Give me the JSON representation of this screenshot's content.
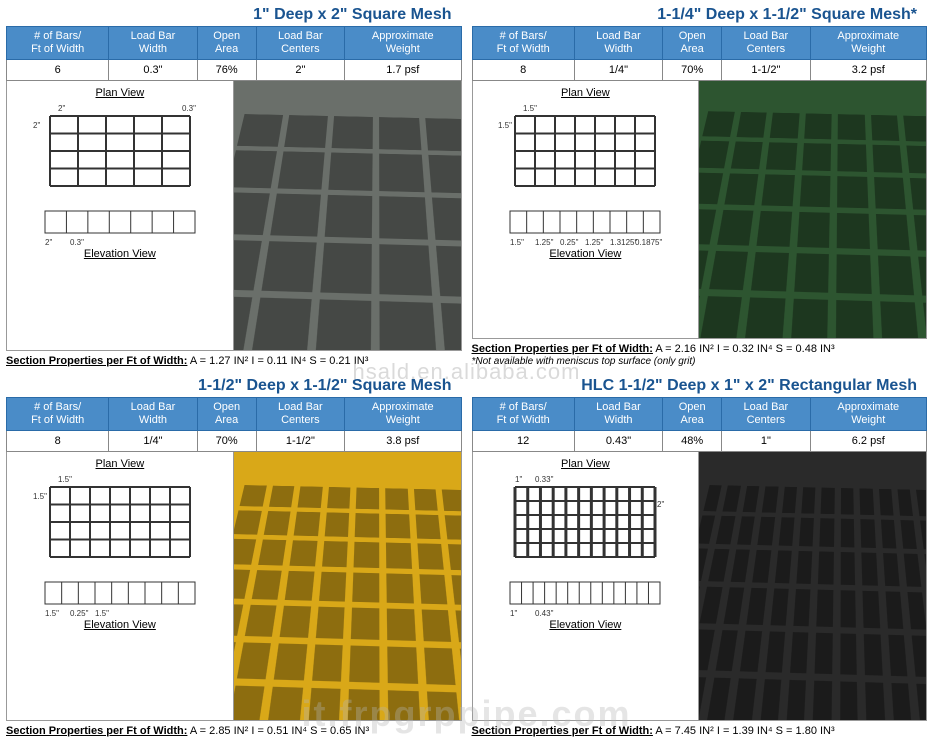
{
  "watermark1": "hsald.en.alibaba.com",
  "watermark2": "it.frpgrppipe.com",
  "colors": {
    "header_bg": "#4a8cc8",
    "header_border": "#2a6ba8",
    "title_color": "#1a5490"
  },
  "table_headers": [
    "# of Bars/\nFt of Width",
    "Load Bar\nWidth",
    "Open\nArea",
    "Load Bar\nCenters",
    "Approximate\nWeight"
  ],
  "panels": [
    {
      "title": "1\" Deep x 2\" Square Mesh",
      "specs": [
        "6",
        "0.3\"",
        "76%",
        "2\"",
        "1.7 psf"
      ],
      "plan_label": "Plan View",
      "elev_label": "Elevation View",
      "section_label": "Section Properties per Ft of Width:",
      "section_vals": "A = 1.27 IN²   I = 0.11 IN⁴   S = 0.21 IN³",
      "photo_color": "#6a6f6a",
      "photo_cols": 5,
      "photo_rows": 5,
      "plan_dims": {
        "h2": "2\"",
        "w2": "2\"",
        "t": "0.3\""
      },
      "elev_dims": {
        "w": "2\"",
        "t": "0.3\""
      },
      "footnote": ""
    },
    {
      "title": "1-1/4\" Deep x 1-1/2\" Square Mesh*",
      "specs": [
        "8",
        "1/4\"",
        "70%",
        "1-1/2\"",
        "3.2 psf"
      ],
      "plan_label": "Plan View",
      "elev_label": "Elevation View",
      "section_label": "Section Properties per Ft of Width:",
      "section_vals": "A = 2.16 IN²   I = 0.32 IN⁴   S = 0.48 IN³",
      "photo_color": "#2d5530",
      "photo_cols": 7,
      "photo_rows": 6,
      "plan_dims": {
        "h2": "1.5\"",
        "w2": "1.5\""
      },
      "elev_dims": {
        "a": "1.5\"",
        "b": "1.25\"",
        "c": "0.25\"",
        "d": "1.25\"",
        "e": "1.3125\"",
        "f": "0.1875\""
      },
      "footnote": "*Not available with meniscus top surface (only grit)"
    },
    {
      "title": "1-1/2\" Deep x 1-1/2\" Square Mesh",
      "specs": [
        "8",
        "1/4\"",
        "70%",
        "1-1/2\"",
        "3.8 psf"
      ],
      "plan_label": "Plan View",
      "elev_label": "Elevation View",
      "section_label": "Section Properties per Ft of Width:",
      "section_vals": "A = 2.85 IN²   I = 0.51 IN⁴   S = 0.65 IN³",
      "photo_color": "#d9a818",
      "photo_cols": 8,
      "photo_rows": 7,
      "plan_dims": {
        "h2": "1.5\"",
        "w2": "1.5\""
      },
      "elev_dims": {
        "a": "1.5\"",
        "b": "0.25\"",
        "c": "1.5\""
      },
      "footnote": ""
    },
    {
      "title": "HLC 1-1/2\" Deep x 1\" x 2\" Rectangular Mesh",
      "specs": [
        "12",
        "0.43\"",
        "48%",
        "1\"",
        "6.2 psf"
      ],
      "plan_label": "Plan View",
      "elev_label": "Elevation View",
      "section_label": "Section Properties per Ft of Width:",
      "section_vals": "A = 7.45 IN²   I = 1.39 IN⁴   S = 1.80 IN³",
      "photo_color": "#2a2a2a",
      "photo_cols": 12,
      "photo_rows": 6,
      "plan_dims": {
        "a": "1\"",
        "b": "0.33\"",
        "c": "2\""
      },
      "elev_dims": {
        "a": "1\"",
        "b": "0.43\""
      },
      "footnote": ""
    }
  ]
}
